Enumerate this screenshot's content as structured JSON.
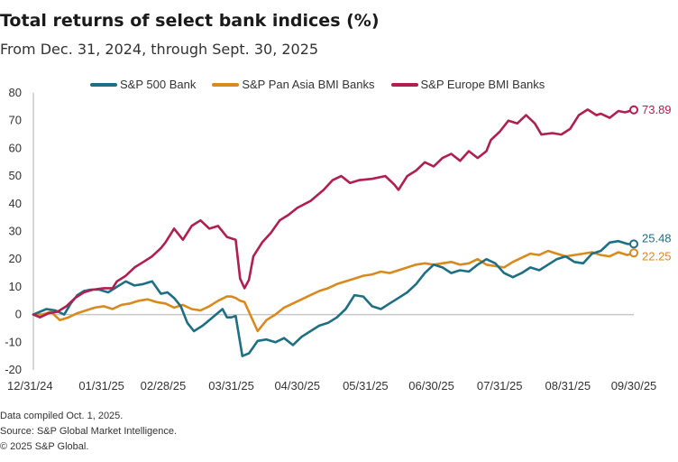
{
  "title": "Total returns of select bank indices (%)",
  "subtitle": "From Dec. 31, 2024, through Sept. 30, 2025",
  "footer": {
    "line1": "Data compiled Oct. 1, 2025.",
    "line2": "Source: S&P Global Market Intelligence.",
    "line3": "© 2025 S&P Global."
  },
  "chart_data": {
    "type": "line",
    "title": "Total returns of select bank indices (%)",
    "subtitle": "From Dec. 31, 2024, through Sept. 30, 2025",
    "xlabel": "",
    "ylabel": "",
    "ylim": [
      -20,
      80
    ],
    "yticks": [
      -20,
      -10,
      0,
      10,
      20,
      30,
      40,
      50,
      60,
      70,
      80
    ],
    "xlim_days": [
      0,
      273
    ],
    "xticks": [
      {
        "label": "12/31/24",
        "day": 0
      },
      {
        "label": "01/31/25",
        "day": 31
      },
      {
        "label": "02/28/25",
        "day": 59
      },
      {
        "label": "03/31/25",
        "day": 90
      },
      {
        "label": "04/30/25",
        "day": 120
      },
      {
        "label": "05/31/25",
        "day": 151
      },
      {
        "label": "06/30/25",
        "day": 181
      },
      {
        "label": "07/31/25",
        "day": 212
      },
      {
        "label": "08/31/25",
        "day": 243
      },
      {
        "label": "09/30/25",
        "day": 273
      }
    ],
    "grid": false,
    "zero_line": true,
    "legend_position": "top",
    "series": [
      {
        "name": "S&P 500 Bank",
        "color": "#1f6f84",
        "end_label": "25.48",
        "days": [
          0,
          3,
          6,
          10,
          14,
          17,
          20,
          23,
          26,
          30,
          34,
          38,
          42,
          46,
          50,
          54,
          58,
          61,
          64,
          67,
          70,
          73,
          77,
          80,
          83,
          86,
          88,
          90,
          92,
          95,
          98,
          102,
          106,
          110,
          114,
          118,
          122,
          126,
          130,
          134,
          138,
          142,
          146,
          150,
          154,
          158,
          162,
          166,
          170,
          174,
          178,
          182,
          186,
          190,
          194,
          198,
          202,
          206,
          210,
          214,
          218,
          222,
          226,
          230,
          234,
          238,
          242,
          246,
          250,
          254,
          258,
          262,
          266,
          270,
          273
        ],
        "values": [
          0,
          1,
          2,
          1.5,
          0,
          4,
          7,
          8.5,
          9,
          9,
          8,
          10,
          12,
          10.5,
          11,
          12,
          7.5,
          8,
          6,
          3,
          -3,
          -6,
          -4,
          -2,
          0,
          2,
          -1,
          -1,
          -0.5,
          -15,
          -14,
          -9.5,
          -9,
          -10,
          -8.5,
          -11,
          -8,
          -6,
          -4,
          -3,
          -1,
          2,
          7,
          6.5,
          3,
          2,
          4,
          6,
          8,
          11,
          15,
          18,
          17,
          15,
          16,
          15.5,
          18,
          20,
          18.5,
          15,
          13.5,
          15,
          17,
          16,
          18,
          20,
          21,
          19,
          18.5,
          22,
          23,
          26,
          26.5,
          25.5,
          25.48
        ]
      },
      {
        "name": "S&P Pan Asia BMI Banks",
        "color": "#d98a1f",
        "end_label": "22.25",
        "days": [
          0,
          4,
          8,
          12,
          16,
          20,
          24,
          28,
          32,
          36,
          40,
          44,
          48,
          52,
          56,
          60,
          64,
          68,
          72,
          76,
          80,
          84,
          88,
          90,
          92,
          94,
          96,
          98,
          102,
          106,
          110,
          114,
          118,
          122,
          126,
          130,
          134,
          138,
          142,
          146,
          150,
          154,
          158,
          162,
          166,
          170,
          174,
          178,
          182,
          186,
          190,
          194,
          198,
          202,
          206,
          210,
          214,
          218,
          222,
          226,
          230,
          234,
          238,
          242,
          246,
          250,
          254,
          258,
          262,
          266,
          270,
          273
        ],
        "values": [
          0,
          0,
          1,
          -2,
          -1,
          0.5,
          1.5,
          2.5,
          3,
          2,
          3.5,
          4,
          5,
          5.5,
          4.5,
          4,
          2.5,
          3.5,
          2,
          1.5,
          3,
          5,
          6.5,
          6.5,
          6,
          5,
          4.5,
          1,
          -6,
          -2,
          0,
          2.5,
          4,
          5.5,
          7,
          8.5,
          9.5,
          11,
          12,
          13,
          14,
          14.5,
          15.5,
          15,
          16,
          17,
          18,
          18.5,
          18,
          18.5,
          19,
          18,
          18.5,
          20,
          18,
          17.5,
          17,
          19,
          20.5,
          22,
          21.5,
          23,
          22,
          21,
          21.5,
          22,
          22.5,
          21.5,
          21,
          22.5,
          21.5,
          22.25
        ]
      },
      {
        "name": "S&P Europe BMI Banks",
        "color": "#b01f4f",
        "end_label": "73.89",
        "days": [
          0,
          3,
          7,
          11,
          15,
          19,
          23,
          27,
          32,
          36,
          38,
          42,
          46,
          50,
          54,
          58,
          60,
          64,
          68,
          72,
          76,
          80,
          84,
          88,
          92,
          94,
          96,
          98,
          100,
          104,
          108,
          112,
          116,
          120,
          126,
          132,
          136,
          140,
          144,
          148,
          154,
          160,
          164,
          166,
          170,
          174,
          178,
          182,
          186,
          190,
          194,
          198,
          202,
          206,
          208,
          212,
          216,
          220,
          224,
          228,
          231,
          236,
          240,
          244,
          248,
          252,
          256,
          258,
          262,
          266,
          269,
          273
        ],
        "values": [
          0,
          -1,
          0.5,
          1,
          3,
          6,
          8,
          9,
          9.5,
          9.5,
          12,
          14,
          17,
          19,
          21,
          24,
          26,
          31,
          27,
          32,
          34,
          31,
          32,
          28,
          27,
          13,
          9.5,
          12.5,
          21,
          26,
          29.5,
          34,
          36,
          38.5,
          41,
          45,
          48.5,
          50,
          47.5,
          48.5,
          49,
          50,
          47,
          45,
          50,
          52,
          55,
          53.5,
          56.5,
          58,
          55.5,
          59,
          56.5,
          59,
          63,
          66,
          70,
          69,
          72,
          69,
          65,
          65.5,
          65,
          67,
          72,
          74,
          72,
          72.5,
          71,
          73.5,
          73,
          73.89
        ]
      }
    ]
  }
}
